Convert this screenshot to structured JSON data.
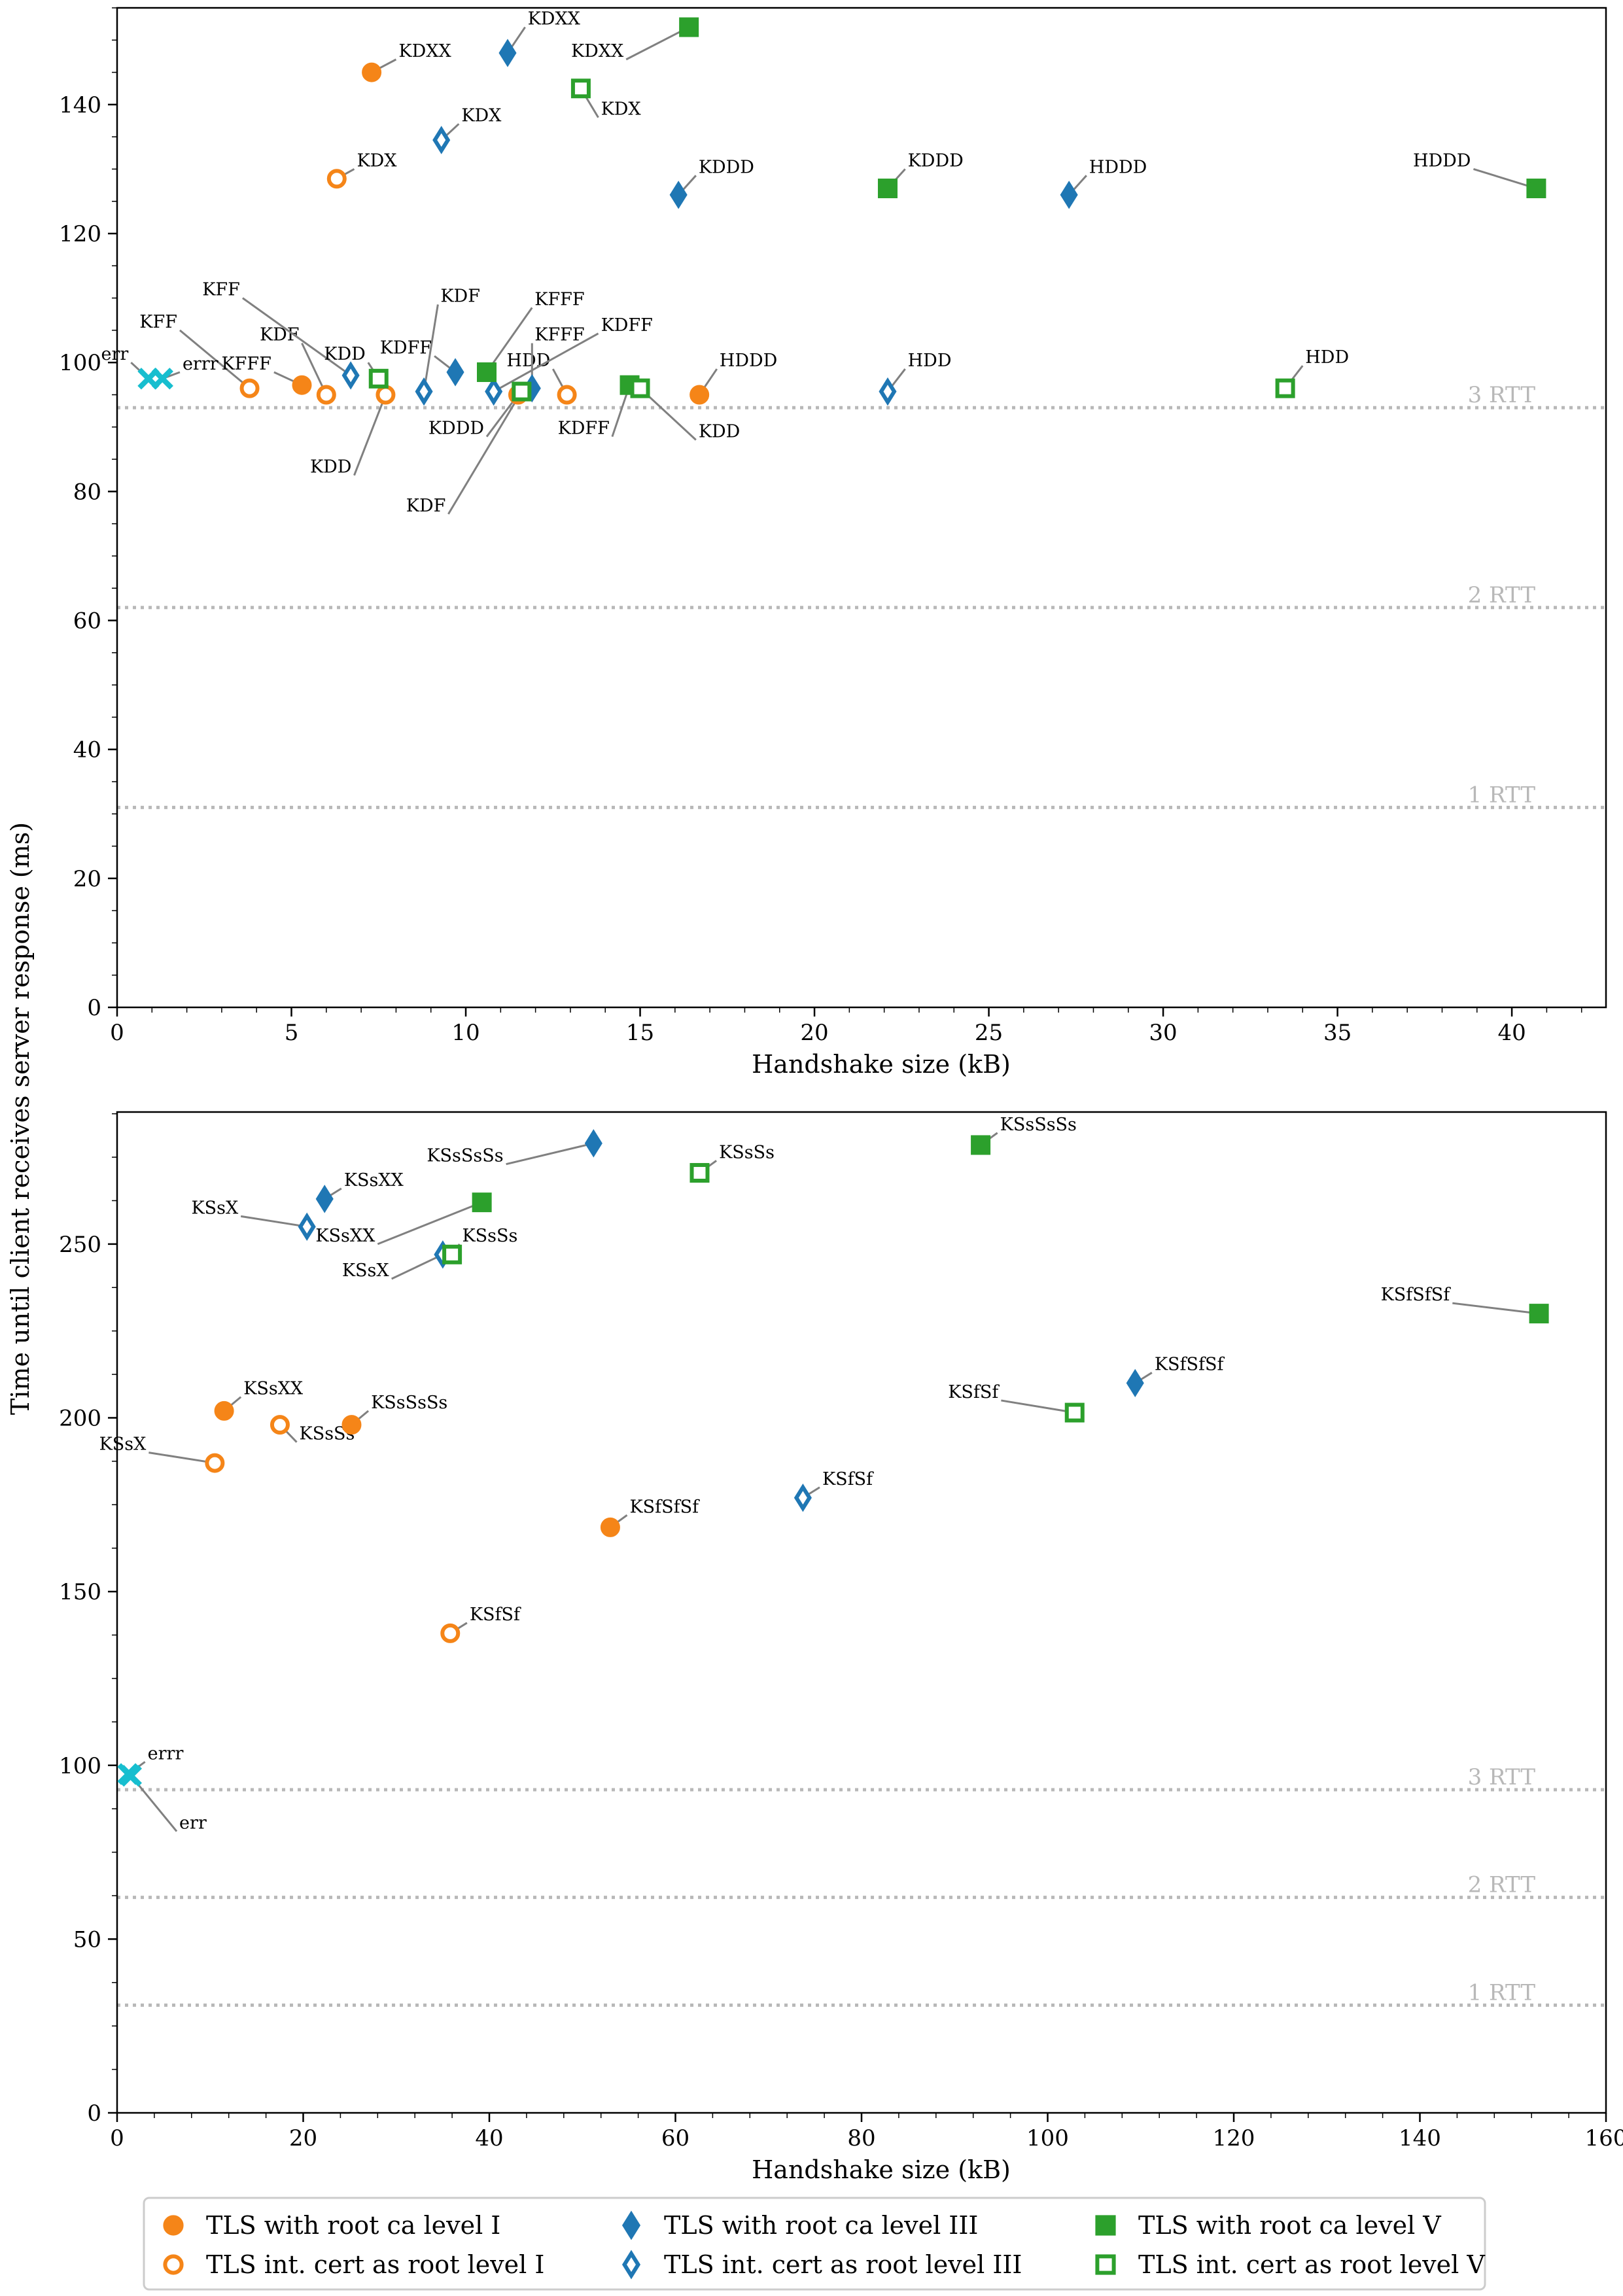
{
  "ylabel": "Time until client receives server response (ms)",
  "colors": {
    "level1": "#f58518",
    "level3": "#1f77b4",
    "level5": "#2ca02c",
    "err": "#17becf",
    "rtt_line": "#b8b8b8"
  },
  "legend": {
    "placement": "bottom-center",
    "entries": [
      {
        "label": "TLS with root ca level I",
        "level": "level1",
        "marker": "circle",
        "filled": true
      },
      {
        "label": "TLS int. cert as root level I",
        "level": "level1",
        "marker": "circle",
        "filled": false
      },
      {
        "label": "TLS with root ca level III",
        "level": "level3",
        "marker": "diamond",
        "filled": true
      },
      {
        "label": "TLS int. cert as root level III",
        "level": "level3",
        "marker": "diamond",
        "filled": false
      },
      {
        "label": "TLS with root ca level V",
        "level": "level5",
        "marker": "square",
        "filled": true
      },
      {
        "label": "TLS int. cert as root level V",
        "level": "level5",
        "marker": "square",
        "filled": false
      }
    ]
  },
  "chart_data": [
    {
      "type": "scatter",
      "xlabel": "Handshake size (kB)",
      "xlim": [
        0,
        42.7
      ],
      "ylim": [
        0,
        155
      ],
      "xticks": [
        0,
        5,
        10,
        15,
        20,
        25,
        30,
        35,
        40
      ],
      "yticks": [
        0,
        20,
        40,
        60,
        80,
        100,
        120,
        140
      ],
      "reference_lines": [
        {
          "y": 93,
          "label": "3 RTT"
        },
        {
          "y": 62,
          "label": "2 RTT"
        },
        {
          "y": 31,
          "label": "1 RTT"
        }
      ],
      "points": [
        {
          "level": "level1",
          "marker": "circle",
          "filled": true,
          "x": 7.3,
          "y": 145,
          "label": "KDXX",
          "lx": 8.0,
          "ly": 147
        },
        {
          "level": "level1",
          "marker": "circle",
          "filled": false,
          "x": 6.3,
          "y": 128.5,
          "label": "KDX",
          "lx": 6.8,
          "ly": 130
        },
        {
          "level": "level1",
          "marker": "circle",
          "filled": false,
          "x": 3.8,
          "y": 96,
          "label": "KFF",
          "lx": 1.8,
          "ly": 105
        },
        {
          "level": "level1",
          "marker": "circle",
          "filled": true,
          "x": 5.3,
          "y": 96.5,
          "label": "KFFF",
          "lx": 4.5,
          "ly": 98.5
        },
        {
          "level": "level1",
          "marker": "circle",
          "filled": false,
          "x": 6.0,
          "y": 95,
          "label": "KDF",
          "lx": 5.3,
          "ly": 103
        },
        {
          "level": "level1",
          "marker": "circle",
          "filled": false,
          "x": 7.7,
          "y": 95,
          "label": "KDD",
          "lx": 6.8,
          "ly": 82.5
        },
        {
          "level": "level1",
          "marker": "circle",
          "filled": true,
          "x": 11.5,
          "y": 95,
          "label": "KDDD",
          "lx": 10.6,
          "ly": 88.5
        },
        {
          "level": "level1",
          "marker": "circle",
          "filled": false,
          "x": 12.9,
          "y": 95,
          "label": "HDD",
          "lx": 12.5,
          "ly": 99
        },
        {
          "level": "level1",
          "marker": "circle",
          "filled": true,
          "x": 16.7,
          "y": 95,
          "label": "HDDD",
          "lx": 17.2,
          "ly": 99
        },
        {
          "level": "level3",
          "marker": "diamond",
          "filled": true,
          "x": 11.2,
          "y": 148,
          "label": "KDXX",
          "lx": 11.7,
          "ly": 152
        },
        {
          "level": "level3",
          "marker": "diamond",
          "filled": false,
          "x": 9.3,
          "y": 134.5,
          "label": "KDX",
          "lx": 9.8,
          "ly": 137
        },
        {
          "level": "level3",
          "marker": "diamond",
          "filled": true,
          "x": 16.1,
          "y": 126,
          "label": "KDDD",
          "lx": 16.6,
          "ly": 129
        },
        {
          "level": "level3",
          "marker": "diamond",
          "filled": true,
          "x": 27.3,
          "y": 126,
          "label": "HDDD",
          "lx": 27.8,
          "ly": 129
        },
        {
          "level": "level3",
          "marker": "diamond",
          "filled": false,
          "x": 22.1,
          "y": 95.5,
          "label": "HDD",
          "lx": 22.6,
          "ly": 99
        },
        {
          "level": "level3",
          "marker": "diamond",
          "filled": false,
          "x": 6.7,
          "y": 98,
          "label": "KFF",
          "lx": 3.6,
          "ly": 110
        },
        {
          "level": "level3",
          "marker": "diamond",
          "filled": false,
          "x": 8.8,
          "y": 95.5,
          "label": "KDF",
          "lx": 9.2,
          "ly": 109
        },
        {
          "level": "level3",
          "marker": "diamond",
          "filled": true,
          "x": 9.7,
          "y": 98.5,
          "label": "KDFF",
          "lx": 9.1,
          "ly": 101
        },
        {
          "level": "level3",
          "marker": "diamond",
          "filled": false,
          "x": 10.8,
          "y": 95.5,
          "label": "KDFF",
          "lx": 13.8,
          "ly": 104.5
        },
        {
          "level": "level3",
          "marker": "diamond",
          "filled": true,
          "x": 11.9,
          "y": 96,
          "label": "KFFF",
          "lx": 11.9,
          "ly": 103
        },
        {
          "level": "level5",
          "marker": "square",
          "filled": true,
          "x": 16.4,
          "y": 152,
          "label": "KDXX",
          "lx": 14.6,
          "ly": 147
        },
        {
          "level": "level5",
          "marker": "square",
          "filled": false,
          "x": 13.3,
          "y": 142.5,
          "label": "KDX",
          "lx": 13.8,
          "ly": 138
        },
        {
          "level": "level5",
          "marker": "square",
          "filled": true,
          "x": 22.1,
          "y": 127,
          "label": "KDDD",
          "lx": 22.6,
          "ly": 130
        },
        {
          "level": "level5",
          "marker": "square",
          "filled": true,
          "x": 40.7,
          "y": 127,
          "label": "HDDD",
          "lx": 38.9,
          "ly": 130
        },
        {
          "level": "level5",
          "marker": "square",
          "filled": false,
          "x": 33.5,
          "y": 96,
          "label": "HDD",
          "lx": 34.0,
          "ly": 99.5
        },
        {
          "level": "level5",
          "marker": "square",
          "filled": false,
          "x": 7.5,
          "y": 97.5,
          "label": "KDD",
          "lx": 7.2,
          "ly": 100
        },
        {
          "level": "level5",
          "marker": "square",
          "filled": true,
          "x": 10.6,
          "y": 98.5,
          "label": "KFFF",
          "lx": 11.9,
          "ly": 108.5
        },
        {
          "level": "level5",
          "marker": "square",
          "filled": false,
          "x": 11.6,
          "y": 95.5,
          "label": "KDF",
          "lx": 9.5,
          "ly": 76.5
        },
        {
          "level": "level5",
          "marker": "square",
          "filled": true,
          "x": 14.7,
          "y": 96.5,
          "label": "KDFF",
          "lx": 14.2,
          "ly": 88.5
        },
        {
          "level": "level5",
          "marker": "square",
          "filled": false,
          "x": 15.0,
          "y": 96,
          "label": "KDD",
          "lx": 16.6,
          "ly": 88
        },
        {
          "level": "err",
          "marker": "x",
          "filled": false,
          "x": 0.9,
          "y": 97.5,
          "label": "err",
          "lx": 0.4,
          "ly": 100
        },
        {
          "level": "err",
          "marker": "x",
          "filled": false,
          "x": 1.3,
          "y": 97.5,
          "label": "errr",
          "lx": 1.8,
          "ly": 98.5
        }
      ]
    },
    {
      "type": "scatter",
      "xlabel": "Handshake size (kB)",
      "xlim": [
        0,
        160
      ],
      "ylim": [
        0,
        288
      ],
      "xticks": [
        0,
        20,
        40,
        60,
        80,
        100,
        120,
        140,
        160
      ],
      "yticks": [
        0,
        50,
        100,
        150,
        200,
        250
      ],
      "reference_lines": [
        {
          "y": 93,
          "label": "3 RTT"
        },
        {
          "y": 62,
          "label": "2 RTT"
        },
        {
          "y": 31,
          "label": "1 RTT"
        }
      ],
      "points": [
        {
          "level": "level1",
          "marker": "circle",
          "filled": true,
          "x": 11.5,
          "y": 202,
          "label": "KSsXX",
          "lx": 13.3,
          "ly": 206
        },
        {
          "level": "level1",
          "marker": "circle",
          "filled": false,
          "x": 10.5,
          "y": 187,
          "label": "KSsX",
          "lx": 3.4,
          "ly": 190
        },
        {
          "level": "level1",
          "marker": "circle",
          "filled": false,
          "x": 17.5,
          "y": 198,
          "label": "KSsSs",
          "lx": 19.3,
          "ly": 193
        },
        {
          "level": "level1",
          "marker": "circle",
          "filled": true,
          "x": 25.2,
          "y": 198,
          "label": "KSsSsSs",
          "lx": 27.0,
          "ly": 202
        },
        {
          "level": "level1",
          "marker": "circle",
          "filled": true,
          "x": 53.0,
          "y": 168.5,
          "label": "KSfSfSf",
          "lx": 54.8,
          "ly": 172
        },
        {
          "level": "level1",
          "marker": "circle",
          "filled": false,
          "x": 35.8,
          "y": 138,
          "label": "KSfSf",
          "lx": 37.6,
          "ly": 141
        },
        {
          "level": "level3",
          "marker": "diamond",
          "filled": true,
          "x": 22.3,
          "y": 263,
          "label": "KSsXX",
          "lx": 24.1,
          "ly": 266
        },
        {
          "level": "level3",
          "marker": "diamond",
          "filled": false,
          "x": 20.4,
          "y": 255,
          "label": "KSsX",
          "lx": 13.3,
          "ly": 258
        },
        {
          "level": "level3",
          "marker": "diamond",
          "filled": true,
          "x": 51.2,
          "y": 279,
          "label": "KSsSsSs",
          "lx": 41.8,
          "ly": 273
        },
        {
          "level": "level3",
          "marker": "diamond",
          "filled": false,
          "x": 35.0,
          "y": 247,
          "label": "KSsX",
          "lx": 29.5,
          "ly": 240
        },
        {
          "level": "level3",
          "marker": "diamond",
          "filled": false,
          "x": 73.7,
          "y": 177,
          "label": "KSfSf",
          "lx": 75.5,
          "ly": 180
        },
        {
          "level": "level3",
          "marker": "diamond",
          "filled": true,
          "x": 109.4,
          "y": 210,
          "label": "KSfSfSf",
          "lx": 111.2,
          "ly": 213
        },
        {
          "level": "level5",
          "marker": "square",
          "filled": true,
          "x": 39.2,
          "y": 262,
          "label": "KSsXX",
          "lx": 28.0,
          "ly": 250
        },
        {
          "level": "level5",
          "marker": "square",
          "filled": false,
          "x": 36.0,
          "y": 247,
          "label": "KSsSs",
          "lx": 36.8,
          "ly": 250
        },
        {
          "level": "level5",
          "marker": "square",
          "filled": false,
          "x": 62.6,
          "y": 270.5,
          "label": "KSsSs",
          "lx": 64.4,
          "ly": 274
        },
        {
          "level": "level5",
          "marker": "square",
          "filled": true,
          "x": 92.8,
          "y": 278.5,
          "label": "KSsSsSs",
          "lx": 94.6,
          "ly": 282
        },
        {
          "level": "level5",
          "marker": "square",
          "filled": false,
          "x": 102.9,
          "y": 201.5,
          "label": "KSfSf",
          "lx": 95.0,
          "ly": 205
        },
        {
          "level": "level5",
          "marker": "square",
          "filled": true,
          "x": 152.8,
          "y": 230,
          "label": "KSfSfSf",
          "lx": 143.5,
          "ly": 233
        },
        {
          "level": "err",
          "marker": "x",
          "filled": false,
          "x": 1.2,
          "y": 97.5,
          "label": "errr",
          "lx": 3.0,
          "ly": 101
        },
        {
          "level": "err",
          "marker": "x",
          "filled": false,
          "x": 1.5,
          "y": 97,
          "label": "err",
          "lx": 6.4,
          "ly": 81
        }
      ]
    }
  ]
}
